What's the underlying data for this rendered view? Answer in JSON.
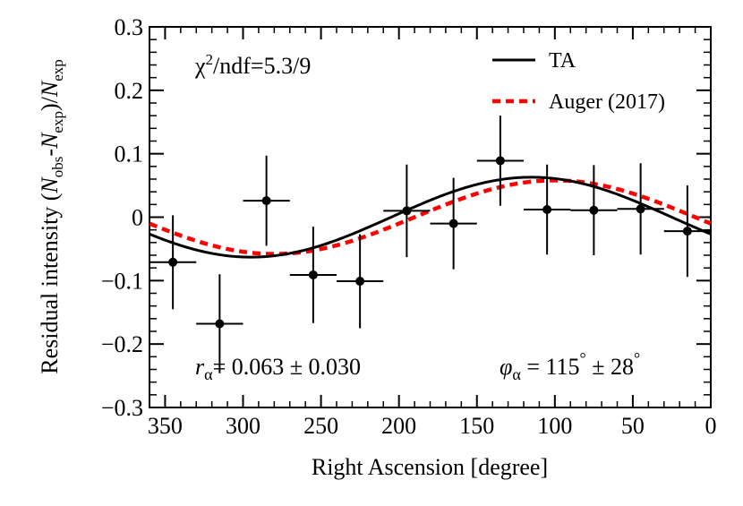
{
  "chart_data": {
    "type": "scatter",
    "xlabel": "Right Ascension [degree]",
    "ylabel": {
      "main": "Residual intensity (",
      "n1": "N",
      "sub_obs": "obs",
      "dash": "-",
      "n2": "N",
      "sub_exp": "exp",
      "close": ")/",
      "n3": "N",
      "sub_exp2": "exp"
    },
    "xlim": [
      360,
      0
    ],
    "ylim": [
      -0.3,
      0.3
    ],
    "x_reversed": true,
    "x_ticks": [
      350,
      300,
      250,
      200,
      150,
      100,
      50,
      0
    ],
    "x_tick_labels": [
      "350",
      "300",
      "250",
      "200",
      "150",
      "100",
      "50",
      "0"
    ],
    "y_ticks": [
      0.3,
      0.2,
      0.1,
      0,
      -0.1,
      -0.2,
      -0.3
    ],
    "y_tick_labels": [
      "0.3",
      "0.2",
      "0.1",
      "0",
      "−0.1",
      "−0.2",
      "−0.3"
    ],
    "points": {
      "name": "TA data",
      "x": [
        345,
        315,
        285,
        255,
        225,
        195,
        165,
        135,
        105,
        75,
        45,
        15
      ],
      "y": [
        -0.071,
        -0.168,
        0.026,
        -0.091,
        -0.101,
        0.01,
        -0.01,
        0.089,
        0.012,
        0.011,
        0.013,
        -0.022
      ],
      "xerr": 15,
      "yerr": [
        0.074,
        0.078,
        0.071,
        0.076,
        0.074,
        0.073,
        0.072,
        0.071,
        0.071,
        0.071,
        0.072,
        0.072
      ]
    },
    "series": [
      {
        "name": "TA",
        "kind": "cosine",
        "amplitude": 0.063,
        "phase_deg": 115,
        "color": "#000000",
        "style": "solid"
      },
      {
        "name": "Auger (2017)",
        "kind": "cosine",
        "amplitude": 0.058,
        "phase_deg": 100,
        "color": "#ff0000",
        "style": "dashed"
      }
    ],
    "legend": [
      {
        "label": "TA"
      },
      {
        "label": "Auger (2017)"
      }
    ],
    "annotations": {
      "chi2": {
        "chi": "χ",
        "sup": "2",
        "rest": "/ndf=5.3/9"
      },
      "r_alpha": {
        "r": "r",
        "alpha": "α",
        "value": "= 0.063 ± 0.030"
      },
      "phi_alpha": {
        "phi": "φ",
        "alpha": "α",
        "eq": " = 115",
        "deg": "°",
        "pm": " ± 28",
        "deg2": "°"
      }
    },
    "legend_position": "top-right",
    "grid": false
  },
  "colors": {
    "axis": "#000000",
    "ta": "#000000",
    "auger": "#ff0000"
  }
}
